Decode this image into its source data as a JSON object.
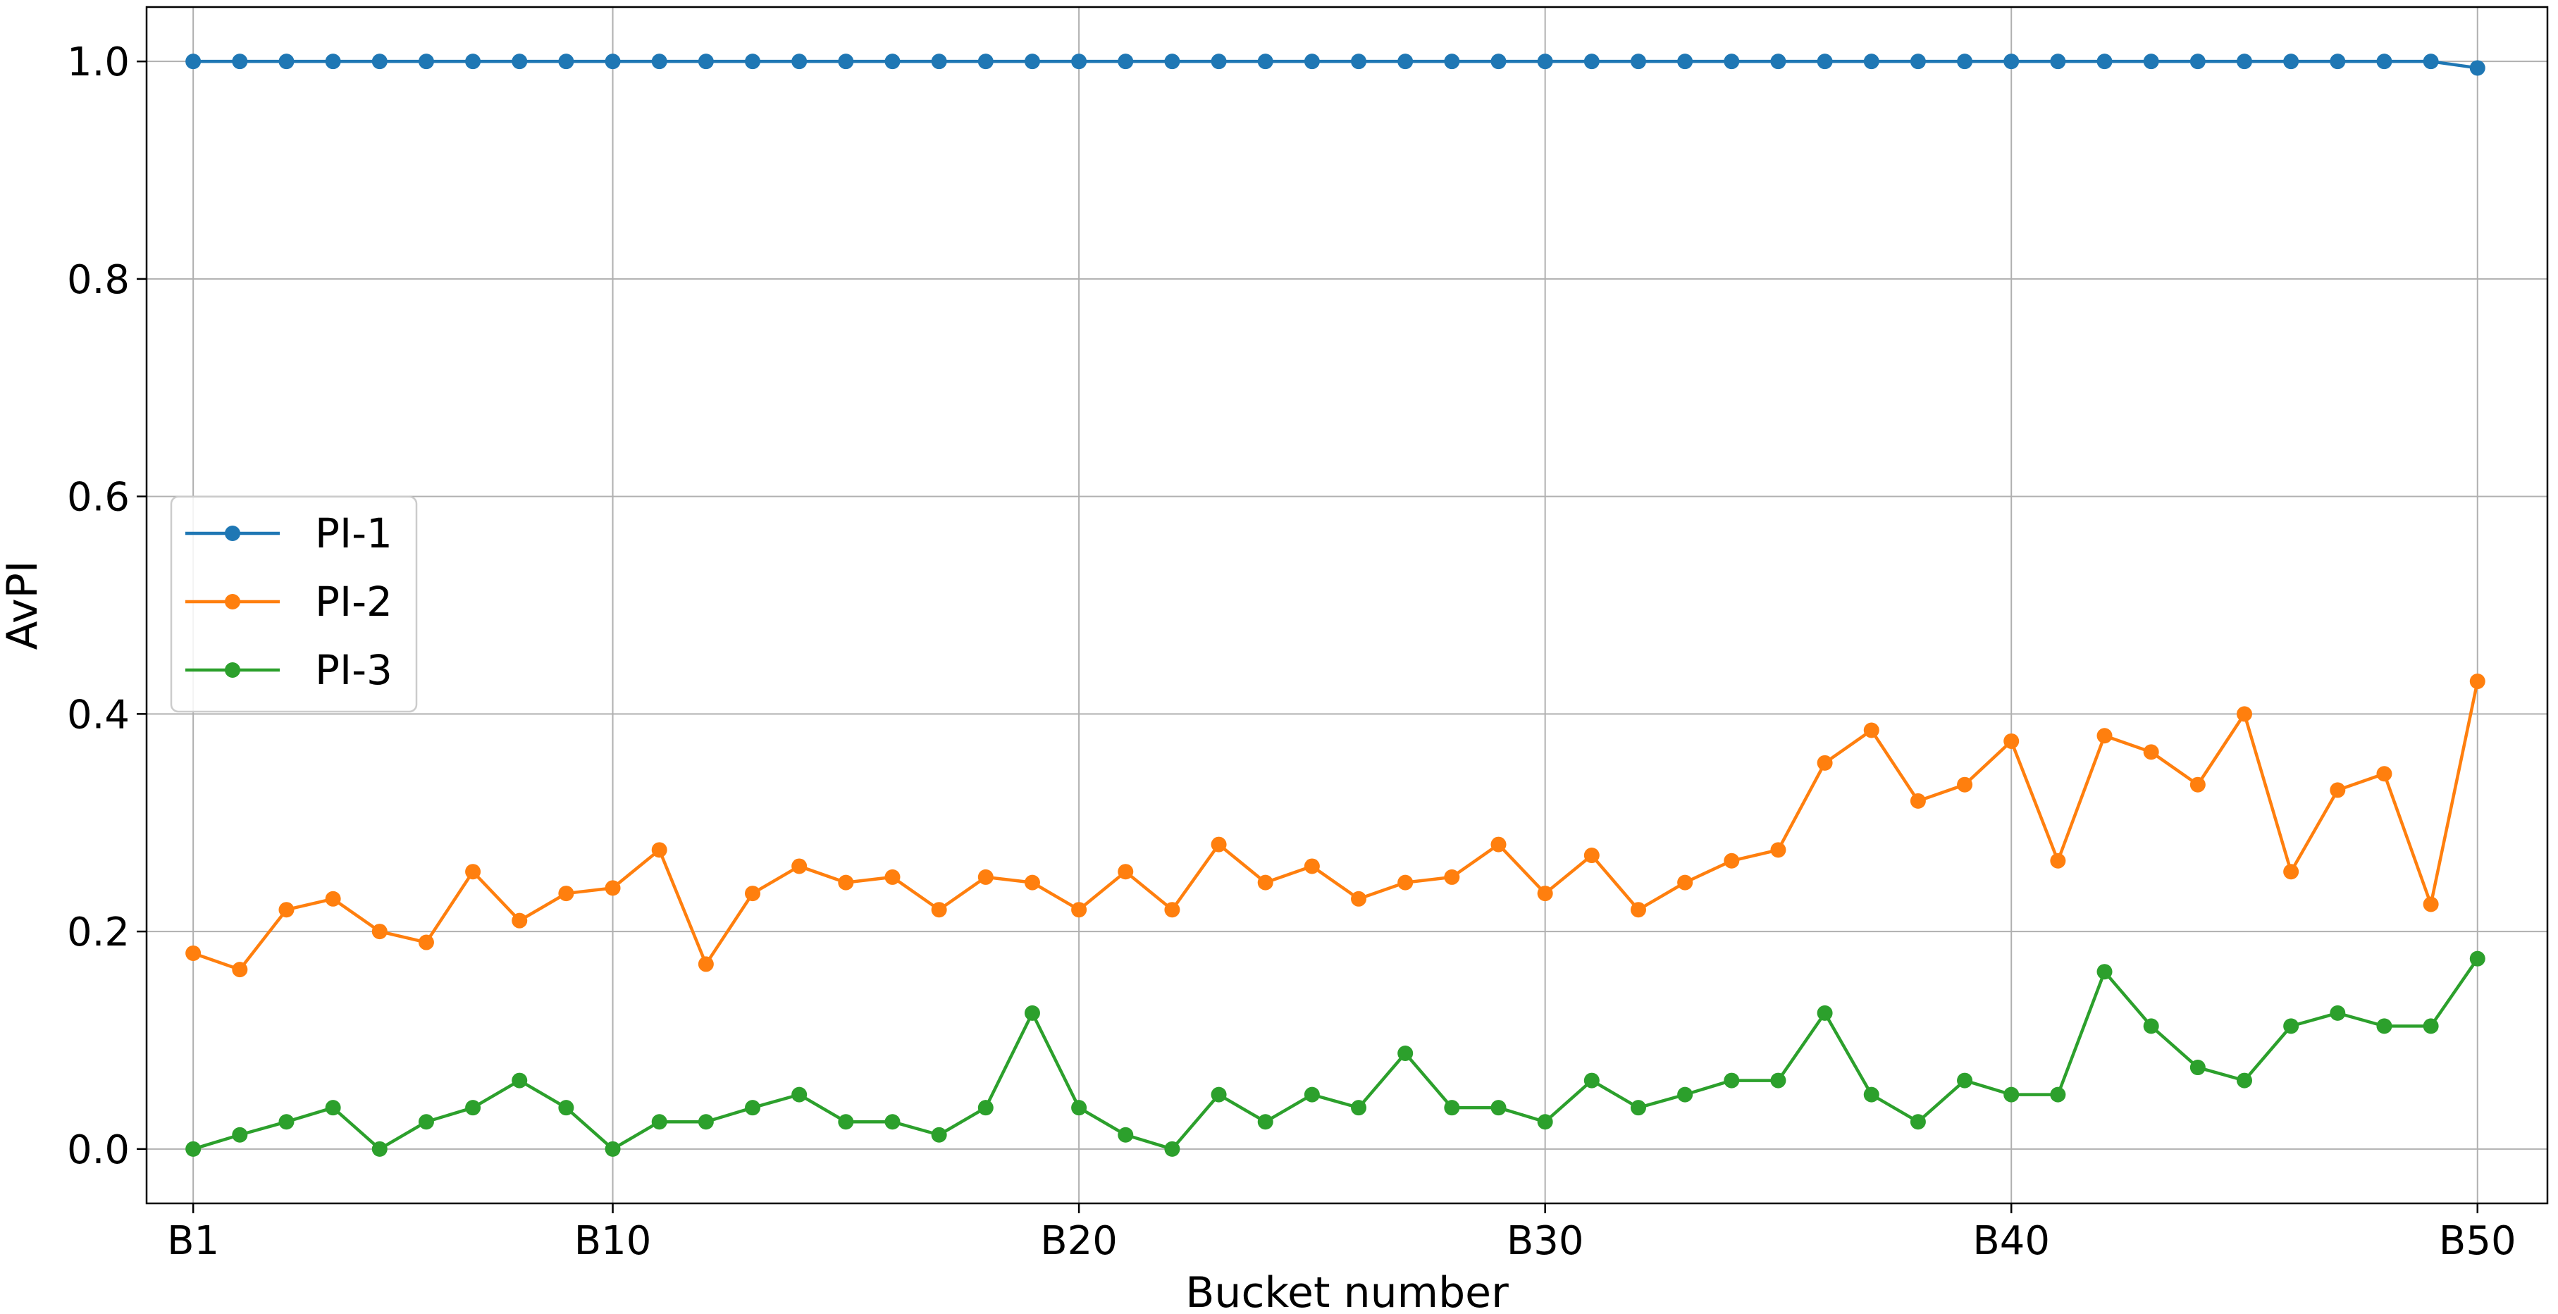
{
  "chart_data": {
    "type": "line",
    "title": "",
    "xlabel": "Bucket number",
    "ylabel": "AvPI",
    "xlim": [
      0,
      51.5
    ],
    "ylim": [
      -0.05,
      1.05
    ],
    "grid": true,
    "legend_placement": "center-left",
    "x": [
      1,
      2,
      3,
      4,
      5,
      6,
      7,
      8,
      9,
      10,
      11,
      12,
      13,
      14,
      15,
      16,
      17,
      18,
      19,
      20,
      21,
      22,
      23,
      24,
      25,
      26,
      27,
      28,
      29,
      30,
      31,
      32,
      33,
      34,
      35,
      36,
      37,
      38,
      39,
      40,
      41,
      42,
      43,
      44,
      45,
      46,
      47,
      48,
      49,
      50
    ],
    "x_ticks": [
      {
        "value": 1,
        "label": "B1"
      },
      {
        "value": 10,
        "label": "B10"
      },
      {
        "value": 20,
        "label": "B20"
      },
      {
        "value": 30,
        "label": "B30"
      },
      {
        "value": 40,
        "label": "B40"
      },
      {
        "value": 50,
        "label": "B50"
      }
    ],
    "y_ticks": [
      {
        "value": 0.0,
        "label": "0.0"
      },
      {
        "value": 0.2,
        "label": "0.2"
      },
      {
        "value": 0.4,
        "label": "0.4"
      },
      {
        "value": 0.6,
        "label": "0.6"
      },
      {
        "value": 0.8,
        "label": "0.8"
      },
      {
        "value": 1.0,
        "label": "1.0"
      }
    ],
    "series": [
      {
        "name": "PI-1",
        "color": "#1f77b4",
        "values": [
          1.0,
          1.0,
          1.0,
          1.0,
          1.0,
          1.0,
          1.0,
          1.0,
          1.0,
          1.0,
          1.0,
          1.0,
          1.0,
          1.0,
          1.0,
          1.0,
          1.0,
          1.0,
          1.0,
          1.0,
          1.0,
          1.0,
          1.0,
          1.0,
          1.0,
          1.0,
          1.0,
          1.0,
          1.0,
          1.0,
          1.0,
          1.0,
          1.0,
          1.0,
          1.0,
          1.0,
          1.0,
          1.0,
          1.0,
          1.0,
          1.0,
          1.0,
          1.0,
          1.0,
          1.0,
          1.0,
          1.0,
          1.0,
          1.0,
          0.994
        ]
      },
      {
        "name": "PI-2",
        "color": "#ff7f0e",
        "values": [
          0.18,
          0.165,
          0.22,
          0.23,
          0.2,
          0.19,
          0.255,
          0.21,
          0.235,
          0.24,
          0.275,
          0.17,
          0.235,
          0.26,
          0.245,
          0.25,
          0.22,
          0.25,
          0.245,
          0.22,
          0.255,
          0.22,
          0.28,
          0.245,
          0.26,
          0.23,
          0.245,
          0.25,
          0.28,
          0.235,
          0.27,
          0.22,
          0.245,
          0.265,
          0.275,
          0.355,
          0.385,
          0.32,
          0.335,
          0.375,
          0.265,
          0.38,
          0.365,
          0.335,
          0.4,
          0.255,
          0.33,
          0.345,
          0.225,
          0.43
        ]
      },
      {
        "name": "PI-3",
        "color": "#2ca02c",
        "values": [
          0.0,
          0.013,
          0.025,
          0.038,
          0.0,
          0.025,
          0.038,
          0.063,
          0.038,
          0.0,
          0.025,
          0.025,
          0.038,
          0.05,
          0.025,
          0.025,
          0.013,
          0.038,
          0.125,
          0.038,
          0.013,
          0.0,
          0.05,
          0.025,
          0.05,
          0.038,
          0.088,
          0.038,
          0.038,
          0.025,
          0.063,
          0.038,
          0.05,
          0.063,
          0.063,
          0.125,
          0.05,
          0.025,
          0.063,
          0.05,
          0.05,
          0.163,
          0.113,
          0.075,
          0.063,
          0.113,
          0.125,
          0.113,
          0.113,
          0.175
        ]
      }
    ]
  }
}
